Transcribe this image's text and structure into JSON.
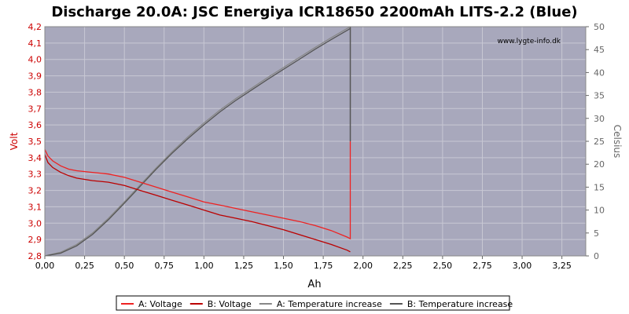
{
  "chart_data": {
    "type": "line",
    "title": "Discharge 20.0A: JSC Energiya ICR18650 2200mAh LITS-2.2 (Blue)",
    "xlabel": "Ah",
    "ylabel": "Volt",
    "y2label": "Celsius",
    "watermark": "www.lygte-info.dk",
    "xlim": [
      0,
      3.4
    ],
    "ylim": [
      2.8,
      4.2
    ],
    "y2lim": [
      0,
      50
    ],
    "x_ticks": [
      "0,00",
      "0,25",
      "0,50",
      "0,75",
      "1,00",
      "1,25",
      "1,50",
      "1,75",
      "2,00",
      "2,25",
      "2,50",
      "2,75",
      "3,00",
      "3,25"
    ],
    "y_ticks": [
      "2,8",
      "2,9",
      "3,0",
      "3,1",
      "3,2",
      "3,3",
      "3,4",
      "3,5",
      "3,6",
      "3,7",
      "3,8",
      "3,9",
      "4,0",
      "4,1",
      "4,2"
    ],
    "y2_ticks": [
      "0",
      "5",
      "10",
      "15",
      "20",
      "25",
      "30",
      "35",
      "40",
      "45",
      "50"
    ],
    "grid": true,
    "legend_position": "bottom",
    "colors": {
      "plot_bg": "#a8a8bc",
      "grid": "#c8c8d4",
      "voltage": "#dd0000",
      "temperature": "#555555",
      "left_axis": "#cc0000",
      "right_axis": "#666666"
    },
    "series": [
      {
        "name": "A: Voltage",
        "axis": "left",
        "color": "#ee2222",
        "x": [
          0,
          0.02,
          0.05,
          0.1,
          0.15,
          0.2,
          0.3,
          0.4,
          0.5,
          0.6,
          0.7,
          0.8,
          0.9,
          1.0,
          1.1,
          1.2,
          1.3,
          1.4,
          1.5,
          1.6,
          1.7,
          1.8,
          1.9,
          1.92,
          1.92
        ],
        "y": [
          3.45,
          3.41,
          3.38,
          3.35,
          3.33,
          3.32,
          3.31,
          3.3,
          3.28,
          3.25,
          3.22,
          3.19,
          3.16,
          3.13,
          3.11,
          3.09,
          3.07,
          3.05,
          3.03,
          3.01,
          2.985,
          2.955,
          2.915,
          2.905,
          3.5
        ]
      },
      {
        "name": "B: Voltage",
        "axis": "left",
        "color": "#bb0000",
        "x": [
          0,
          0.02,
          0.05,
          0.1,
          0.15,
          0.2,
          0.3,
          0.4,
          0.5,
          0.6,
          0.7,
          0.8,
          0.9,
          1.0,
          1.1,
          1.2,
          1.3,
          1.4,
          1.5,
          1.6,
          1.7,
          1.8,
          1.9,
          1.92
        ],
        "y": [
          3.42,
          3.37,
          3.34,
          3.31,
          3.29,
          3.275,
          3.26,
          3.25,
          3.23,
          3.2,
          3.17,
          3.14,
          3.11,
          3.08,
          3.05,
          3.03,
          3.01,
          2.985,
          2.96,
          2.93,
          2.9,
          2.87,
          2.835,
          2.825
        ]
      },
      {
        "name": "A: Temperature increase",
        "axis": "right",
        "color": "#888888",
        "x": [
          0,
          0.1,
          0.2,
          0.3,
          0.4,
          0.5,
          0.6,
          0.7,
          0.8,
          0.9,
          1.0,
          1.1,
          1.2,
          1.3,
          1.4,
          1.5,
          1.6,
          1.7,
          1.8,
          1.9,
          1.92
        ],
        "y": [
          0,
          0.8,
          2.5,
          5.0,
          8.2,
          11.8,
          15.5,
          19.2,
          22.7,
          26.0,
          29.0,
          31.8,
          34.3,
          36.6,
          38.9,
          41.1,
          43.3,
          45.5,
          47.6,
          49.6,
          50.0
        ]
      },
      {
        "name": "B: Temperature increase",
        "axis": "right",
        "color": "#555555",
        "x": [
          0,
          0.1,
          0.2,
          0.3,
          0.4,
          0.5,
          0.6,
          0.7,
          0.8,
          0.9,
          1.0,
          1.1,
          1.2,
          1.3,
          1.4,
          1.5,
          1.6,
          1.7,
          1.8,
          1.9,
          1.92
        ],
        "y": [
          0,
          0.6,
          2.2,
          4.7,
          7.9,
          11.5,
          15.2,
          18.9,
          22.4,
          25.6,
          28.6,
          31.4,
          33.9,
          36.2,
          38.5,
          40.7,
          42.9,
          45.1,
          47.2,
          49.2,
          49.6
        ]
      }
    ]
  }
}
